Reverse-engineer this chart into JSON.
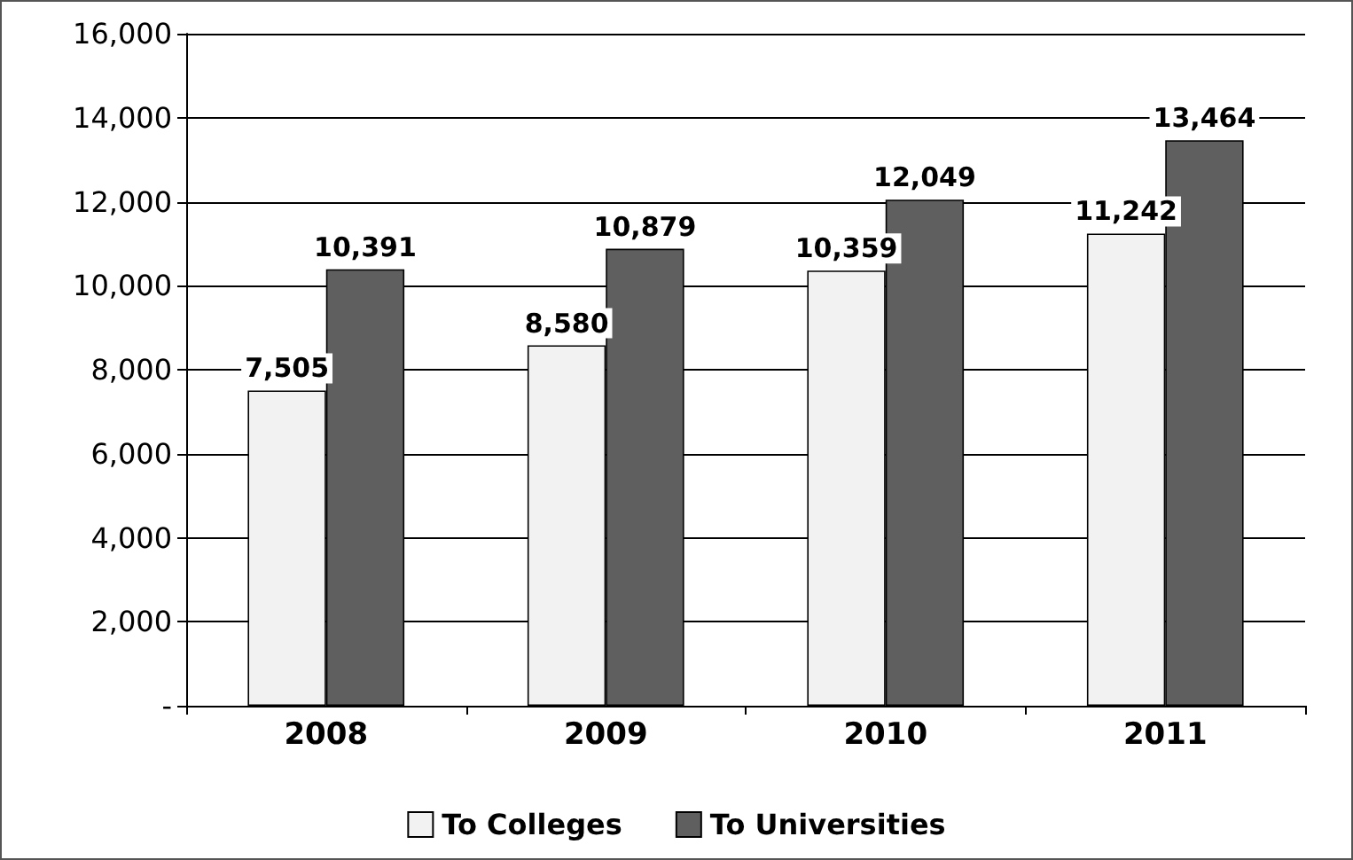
{
  "chart_data": {
    "type": "bar",
    "categories": [
      "2008",
      "2009",
      "2010",
      "2011"
    ],
    "series": [
      {
        "name": "To Colleges",
        "color": "#f2f2f2",
        "values": [
          7505,
          8580,
          10359,
          11242
        ],
        "value_labels": [
          "7,505",
          "8,580",
          "10,359",
          "11,242"
        ]
      },
      {
        "name": "To Universities",
        "color": "#5f5f5f",
        "values": [
          10391,
          10879,
          12049,
          13464
        ],
        "value_labels": [
          "10,391",
          "10,879",
          "12,049",
          "13,464"
        ]
      }
    ],
    "ylim": [
      0,
      16000
    ],
    "yticks": [
      {
        "value": 0,
        "label": "-"
      },
      {
        "value": 2000,
        "label": "2,000"
      },
      {
        "value": 4000,
        "label": "4,000"
      },
      {
        "value": 6000,
        "label": "6,000"
      },
      {
        "value": 8000,
        "label": "8,000"
      },
      {
        "value": 10000,
        "label": "10,000"
      },
      {
        "value": 12000,
        "label": "12,000"
      },
      {
        "value": 14000,
        "label": "14,000"
      },
      {
        "value": 16000,
        "label": "16,000"
      }
    ],
    "grid": "y",
    "legend": "bottom"
  }
}
